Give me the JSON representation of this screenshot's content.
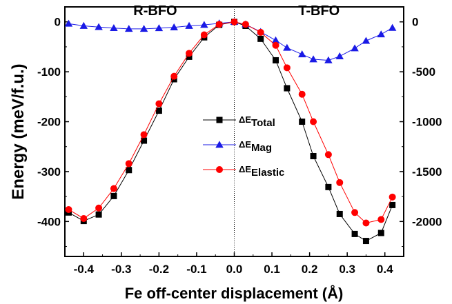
{
  "chart_data": {
    "type": "line",
    "xlabel": "Fe off-center displacement (Å)",
    "ylabel": "Energy (meV/f.u.)",
    "xlim": [
      -0.45,
      0.45
    ],
    "ylim_left": [
      -470,
      30
    ],
    "ylim_right": [
      -2350,
      150
    ],
    "x_ticks": [
      -0.4,
      -0.3,
      -0.2,
      -0.1,
      0.0,
      0.1,
      0.2,
      0.3,
      0.4
    ],
    "x_tick_labels": [
      "-0.4",
      "-0.3",
      "-0.2",
      "-0.1",
      "0.0",
      "0.1",
      "0.2",
      "0.3",
      "0.4"
    ],
    "y_ticks_left": [
      0,
      -100,
      -200,
      -300,
      -400
    ],
    "y_tick_labels_left": [
      "0",
      "-100",
      "-200",
      "-300",
      "-400"
    ],
    "y_ticks_right": [
      0,
      -500,
      -1000,
      -1500,
      -2000
    ],
    "y_tick_labels_right": [
      "0",
      "-500",
      "-1000",
      "-1500",
      "-2000"
    ],
    "annotations": [
      {
        "text": "R-BFO",
        "x": -0.21,
        "y": 5
      },
      {
        "text": "T-BFO",
        "x": 0.225,
        "y": 5
      }
    ],
    "vertical_line_x": 0.0,
    "legend_placement": "center",
    "series": [
      {
        "name": "ΔE",
        "subscript": "Total",
        "axis": "left",
        "color": "#000000",
        "marker": "square",
        "x": [
          -0.44,
          -0.4,
          -0.36,
          -0.32,
          -0.28,
          -0.24,
          -0.2,
          -0.16,
          -0.12,
          -0.08,
          -0.04,
          0.0,
          0.03,
          0.07,
          0.11,
          0.14,
          0.18,
          0.21,
          0.25,
          0.28,
          0.32,
          0.35,
          0.39,
          0.42
        ],
        "y": [
          -382,
          -399,
          -386,
          -349,
          -297,
          -238,
          -178,
          -115,
          -70,
          -31,
          -6,
          0,
          -8,
          -34,
          -77,
          -133,
          -200,
          -269,
          -331,
          -385,
          -425,
          -439,
          -423,
          -367
        ]
      },
      {
        "name": "ΔE",
        "subscript": "Mag",
        "axis": "right",
        "color": "#1a1ae6",
        "marker": "triangle",
        "x": [
          -0.44,
          -0.4,
          -0.36,
          -0.32,
          -0.28,
          -0.24,
          -0.2,
          -0.16,
          -0.12,
          -0.08,
          -0.04,
          0.0,
          0.03,
          0.07,
          0.11,
          0.14,
          0.18,
          0.21,
          0.25,
          0.28,
          0.32,
          0.35,
          0.39,
          0.42
        ],
        "y": [
          -18,
          -40,
          -52,
          -62,
          -70,
          -70,
          -63,
          -55,
          -40,
          -30,
          -15,
          0,
          -25,
          -100,
          -185,
          -260,
          -325,
          -375,
          -385,
          -345,
          -265,
          -190,
          -125,
          -60
        ]
      },
      {
        "name": "ΔE",
        "subscript": "Elastic",
        "axis": "left",
        "color": "#ff0000",
        "marker": "circle",
        "x": [
          -0.44,
          -0.4,
          -0.36,
          -0.32,
          -0.28,
          -0.24,
          -0.2,
          -0.16,
          -0.12,
          -0.08,
          -0.04,
          0.0,
          0.03,
          0.07,
          0.11,
          0.14,
          0.18,
          0.21,
          0.25,
          0.28,
          0.32,
          0.35,
          0.39,
          0.42
        ],
        "y": [
          -376,
          -394,
          -373,
          -334,
          -284,
          -226,
          -164,
          -109,
          -63,
          -26,
          -5,
          0,
          -5,
          -21,
          -47,
          -92,
          -145,
          -200,
          -266,
          -322,
          -382,
          -403,
          -396,
          -351
        ]
      }
    ]
  }
}
